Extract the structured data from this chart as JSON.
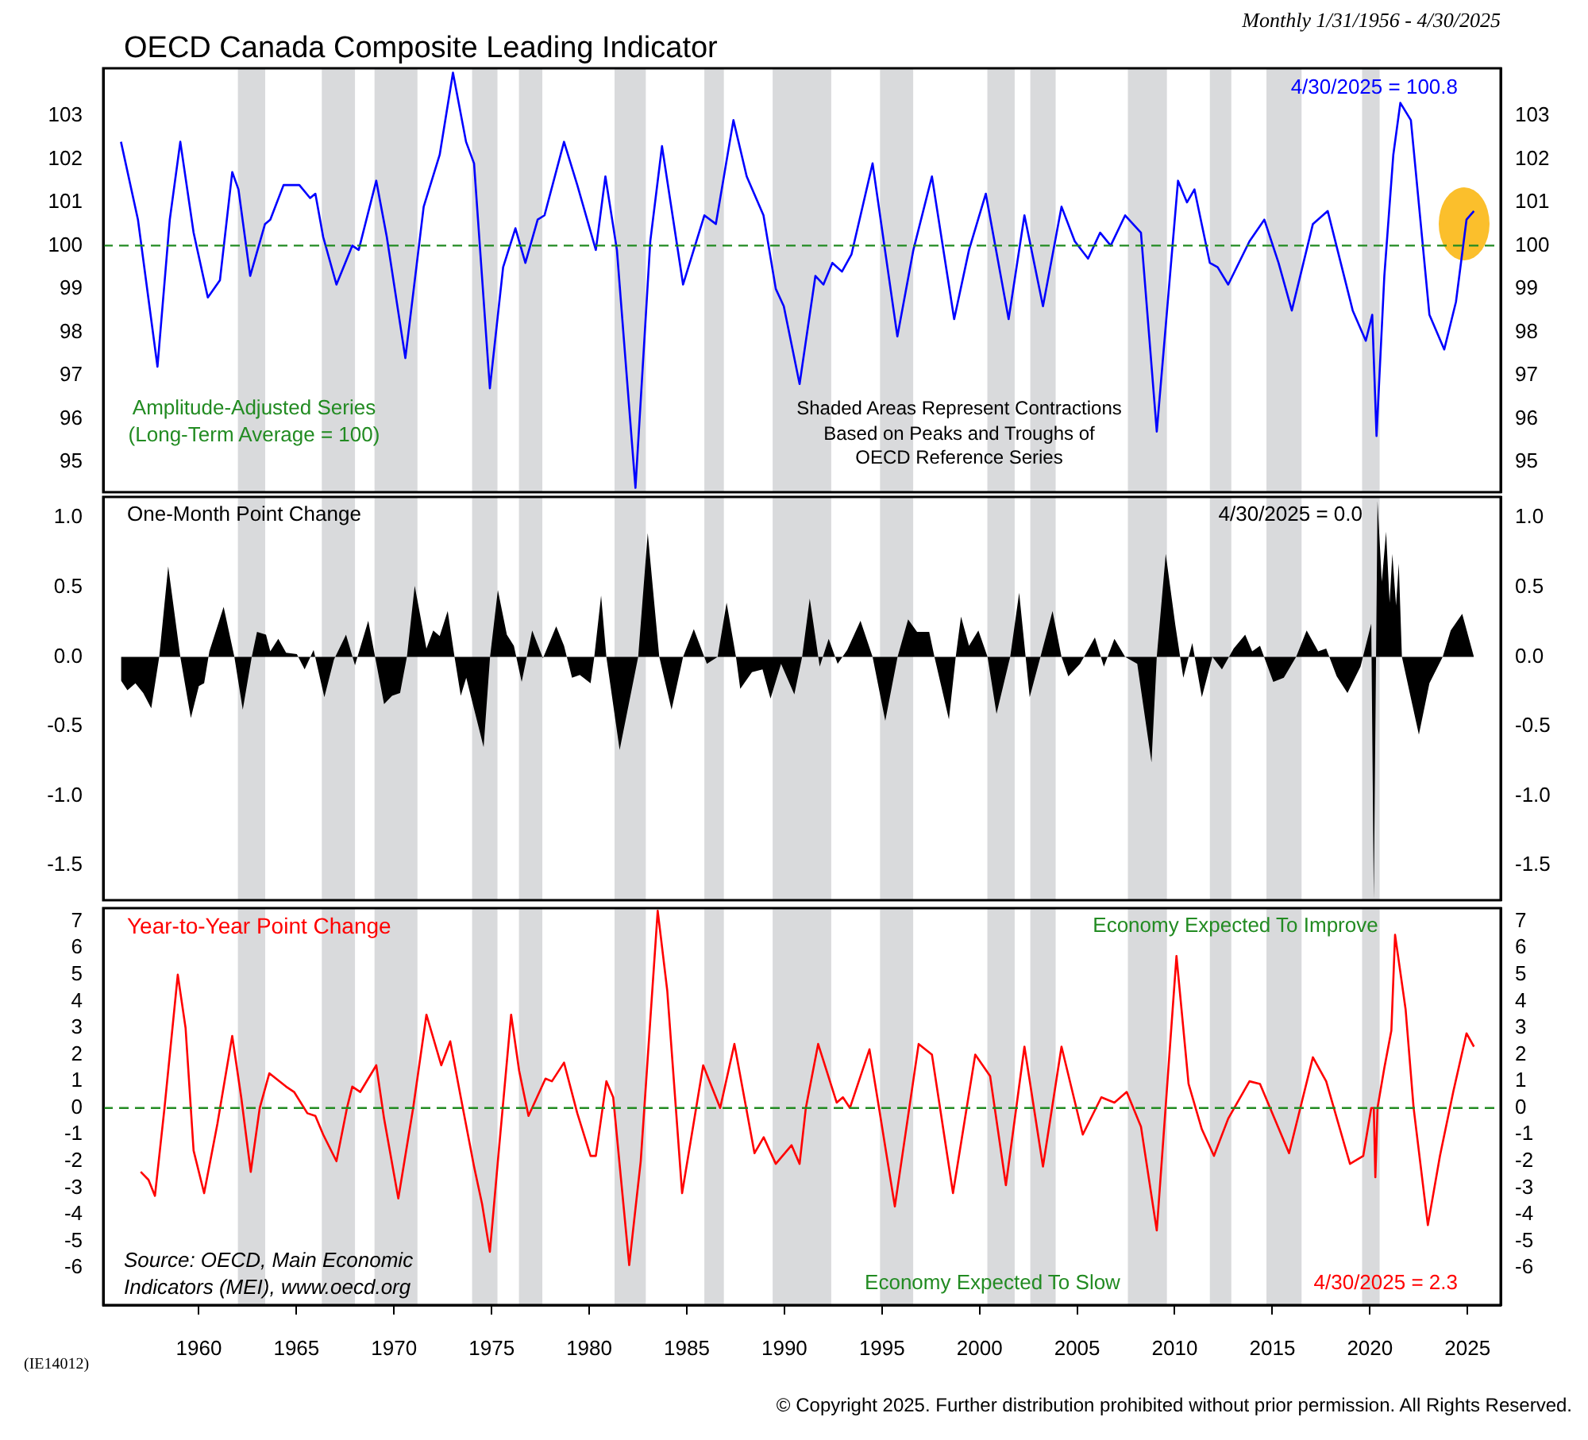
{
  "chart_data": [
    {
      "type": "line",
      "title": "OECD Canada Composite Leading Indicator",
      "subtitle": "Monthly 1/31/1956 - 4/30/2025",
      "color": "#0000ff",
      "tick_labels": "y",
      "x": [
        1956.01,
        1956.88,
        1957.88,
        1958.51,
        1959.05,
        1959.73,
        1960.46,
        1961.08,
        1961.71,
        1962.03,
        1962.63,
        1963.39,
        1963.66,
        1964.34,
        1965.15,
        1965.7,
        1965.97,
        1966.37,
        1967.05,
        1967.86,
        1968.19,
        1969.09,
        1969.63,
        1970.58,
        1971.52,
        1972.34,
        1973.02,
        1973.69,
        1974.1,
        1974.91,
        1975.59,
        1976.22,
        1976.73,
        1977.36,
        1977.71,
        1978.71,
        1979.39,
        1980.34,
        1980.83,
        1981.42,
        1982.37,
        1983.13,
        1983.73,
        1984.81,
        1985.9,
        1986.49,
        1987.39,
        1988.07,
        1988.93,
        1989.56,
        1989.97,
        1990.78,
        1991.59,
        1992.0,
        1992.46,
        1992.95,
        1993.44,
        1994.52,
        1995.79,
        1996.61,
        1997.56,
        1998.7,
        1999.46,
        2000.32,
        2001.49,
        2002.3,
        2003.25,
        2004.2,
        2004.88,
        2005.56,
        2006.18,
        2006.72,
        2007.46,
        2008.27,
        2009.08,
        2010.17,
        2010.63,
        2011.01,
        2011.8,
        2012.2,
        2012.74,
        2013.83,
        2014.59,
        2015.32,
        2016.0,
        2017.08,
        2017.84,
        2019.12,
        2019.79,
        2020.12,
        2020.34,
        2020.74,
        2021.2,
        2021.56,
        2022.1,
        2023.05,
        2023.81,
        2024.41,
        2024.95,
        2025.33
      ],
      "values": [
        102.4,
        100.6,
        97.2,
        100.6,
        102.4,
        100.3,
        98.8,
        99.2,
        101.7,
        101.3,
        99.3,
        100.5,
        100.6,
        101.4,
        101.4,
        101.1,
        101.2,
        100.2,
        99.1,
        100.0,
        99.9,
        101.5,
        100.2,
        97.4,
        100.9,
        102.1,
        104.0,
        102.4,
        101.9,
        96.7,
        99.5,
        100.4,
        99.6,
        100.6,
        100.7,
        102.4,
        101.4,
        99.9,
        101.6,
        99.9,
        94.4,
        100.1,
        102.3,
        99.1,
        100.7,
        100.5,
        102.9,
        101.6,
        100.7,
        99.0,
        98.6,
        96.8,
        99.3,
        99.1,
        99.6,
        99.4,
        99.8,
        101.9,
        97.9,
        99.9,
        101.6,
        98.3,
        99.9,
        101.2,
        98.3,
        100.7,
        98.6,
        100.9,
        100.1,
        99.7,
        100.3,
        100.0,
        100.7,
        100.3,
        95.7,
        101.5,
        101.0,
        101.3,
        99.6,
        99.5,
        99.1,
        100.1,
        100.6,
        99.6,
        98.5,
        100.5,
        100.8,
        98.5,
        97.8,
        98.4,
        95.6,
        99.3,
        102.1,
        103.3,
        102.9,
        98.4,
        97.6,
        98.7,
        100.6,
        100.8
      ],
      "xlim": [
        1955.1,
        2026.7
      ],
      "ylim": [
        94.3,
        104.1
      ],
      "yticks": [
        95,
        96,
        97,
        98,
        99,
        100,
        101,
        102,
        103
      ],
      "y2lim": [
        94.3,
        104.1
      ],
      "y2ticks": [
        95,
        96,
        97,
        98,
        99,
        100,
        101,
        102,
        103
      ],
      "ref_lines": [
        {
          "axis": "y",
          "value": 100,
          "color": "#228b22",
          "line_style": "dashed"
        }
      ],
      "bands": [
        {
          "axis": "x",
          "from": 1962.0,
          "to": 1963.4,
          "color": "#d9dadc"
        },
        {
          "axis": "x",
          "from": 1966.3,
          "to": 1968.0,
          "color": "#d9dadc"
        },
        {
          "axis": "x",
          "from": 1969.0,
          "to": 1971.2,
          "color": "#d9dadc"
        },
        {
          "axis": "x",
          "from": 1974.0,
          "to": 1975.3,
          "color": "#d9dadc"
        },
        {
          "axis": "x",
          "from": 1976.4,
          "to": 1977.6,
          "color": "#d9dadc"
        },
        {
          "axis": "x",
          "from": 1981.3,
          "to": 1982.9,
          "color": "#d9dadc"
        },
        {
          "axis": "x",
          "from": 1985.9,
          "to": 1986.9,
          "color": "#d9dadc"
        },
        {
          "axis": "x",
          "from": 1989.4,
          "to": 1992.4,
          "color": "#d9dadc"
        },
        {
          "axis": "x",
          "from": 1994.9,
          "to": 1996.6,
          "color": "#d9dadc"
        },
        {
          "axis": "x",
          "from": 2000.4,
          "to": 2001.8,
          "color": "#d9dadc"
        },
        {
          "axis": "x",
          "from": 2002.6,
          "to": 2003.9,
          "color": "#d9dadc"
        },
        {
          "axis": "x",
          "from": 2007.6,
          "to": 2009.6,
          "color": "#d9dadc"
        },
        {
          "axis": "x",
          "from": 2011.8,
          "to": 2012.9,
          "color": "#d9dadc"
        },
        {
          "axis": "x",
          "from": 2014.7,
          "to": 2016.5,
          "color": "#d9dadc"
        },
        {
          "axis": "x",
          "from": 2019.6,
          "to": 2020.5,
          "color": "#d9dadc"
        }
      ],
      "annotations": [
        "Amplitude-Adjusted Series\n(Long-Term Average = 100)",
        "Shaded Areas Represent Contractions\nBased on Peaks and Troughs of\nOECD Reference Series",
        "4/30/2025 = 100.8"
      ]
    },
    {
      "type": "area",
      "title": "One-Month Point Change",
      "color": "#000000",
      "tick_labels": "y",
      "x": [
        1956.01,
        1956.34,
        1956.75,
        1957.15,
        1957.56,
        1957.97,
        1958.43,
        1959.05,
        1959.59,
        1960.0,
        1960.27,
        1960.54,
        1961.27,
        1961.82,
        1962.25,
        1962.71,
        1962.98,
        1963.44,
        1963.66,
        1964.07,
        1964.47,
        1965.02,
        1965.42,
        1965.88,
        1966.43,
        1966.92,
        1967.54,
        1968.0,
        1968.68,
        1969.03,
        1969.49,
        1969.9,
        1970.31,
        1970.66,
        1971.06,
        1971.66,
        1972.01,
        1972.34,
        1972.75,
        1973.1,
        1973.42,
        1973.7,
        1974.59,
        1974.92,
        1975.32,
        1975.78,
        1976.14,
        1976.54,
        1977.08,
        1977.63,
        1978.31,
        1978.71,
        1979.12,
        1979.52,
        1980.07,
        1980.26,
        1980.61,
        1980.88,
        1981.56,
        1982.51,
        1983.0,
        1983.59,
        1984.22,
        1984.81,
        1985.36,
        1986.03,
        1986.58,
        1987.04,
        1987.52,
        1987.74,
        1988.34,
        1988.88,
        1989.29,
        1989.83,
        1990.51,
        1990.91,
        1991.3,
        1991.81,
        1992.27,
        1992.73,
        1993.22,
        1993.9,
        1994.52,
        1995.17,
        1995.8,
        1996.34,
        1996.8,
        1997.42,
        1997.69,
        1998.43,
        1998.78,
        1999.05,
        1999.46,
        1999.94,
        2000.41,
        2000.87,
        2001.57,
        2002.03,
        2002.57,
        2003.12,
        2003.74,
        2004.2,
        2004.55,
        2005.15,
        2005.91,
        2006.37,
        2006.91,
        2007.46,
        2008.08,
        2008.81,
        2009.08,
        2009.54,
        2010.03,
        2010.44,
        2010.9,
        2011.39,
        2011.93,
        2012.42,
        2013.02,
        2013.61,
        2013.97,
        2014.37,
        2015.05,
        2015.59,
        2016.22,
        2016.76,
        2017.35,
        2017.76,
        2018.3,
        2018.85,
        2019.52,
        2020.07,
        2020.2,
        2020.39,
        2020.61,
        2020.83,
        2021.01,
        2021.15,
        2021.34,
        2021.48,
        2021.64,
        2022.51,
        2023.05,
        2023.73,
        2024.14,
        2024.73,
        2025.33
      ],
      "values": [
        -0.17,
        -0.24,
        -0.19,
        -0.26,
        -0.37,
        0,
        0.65,
        0,
        -0.44,
        -0.21,
        -0.19,
        0.04,
        0.36,
        0,
        -0.38,
        0,
        0.18,
        0.16,
        0.04,
        0.13,
        0.03,
        0.02,
        -0.09,
        0.05,
        -0.29,
        -0.02,
        0.16,
        -0.06,
        0.26,
        0,
        -0.34,
        -0.28,
        -0.26,
        0,
        0.51,
        0.06,
        0.19,
        0.15,
        0.33,
        0,
        -0.28,
        -0.15,
        -0.65,
        0,
        0.48,
        0.16,
        0.08,
        -0.18,
        0.19,
        -0.01,
        0.22,
        0.08,
        -0.15,
        -0.13,
        -0.19,
        0,
        0.44,
        0,
        -0.67,
        0,
        0.89,
        0,
        -0.38,
        0,
        0.2,
        -0.05,
        0,
        0.39,
        0,
        -0.23,
        -0.11,
        -0.09,
        -0.3,
        -0.05,
        -0.27,
        0,
        0.42,
        -0.07,
        0.13,
        -0.05,
        0.05,
        0.26,
        0,
        -0.46,
        0,
        0.27,
        0.18,
        0.18,
        0,
        -0.45,
        0,
        0.29,
        0.08,
        0.19,
        0,
        -0.41,
        0,
        0.46,
        -0.29,
        0,
        0.33,
        0,
        -0.14,
        -0.05,
        0.14,
        -0.07,
        0.13,
        0,
        -0.05,
        -0.76,
        0,
        0.74,
        0.23,
        -0.15,
        0.1,
        -0.29,
        0,
        -0.09,
        0.06,
        0.16,
        0.04,
        0.08,
        -0.18,
        -0.15,
        0,
        0.19,
        0.04,
        0.06,
        -0.14,
        -0.26,
        -0.07,
        0.24,
        -1.74,
        1.12,
        0.54,
        0.9,
        0.39,
        0.74,
        0.37,
        0.67,
        0,
        -0.56,
        -0.19,
        0,
        0.19,
        0.31,
        0.0
      ],
      "xlim": [
        1955.1,
        2026.7
      ],
      "ylim": [
        -1.75,
        1.15
      ],
      "yticks": [
        {
          "value": 1,
          "label": "1.0"
        },
        0.5,
        {
          "value": 0,
          "label": "0.0"
        },
        -0.5,
        {
          "value": -1,
          "label": "-1.0"
        },
        -1.5
      ],
      "y2lim": [
        -1.75,
        1.15
      ],
      "y2ticks": [
        {
          "value": 1,
          "label": "1.0"
        },
        0.5,
        {
          "value": 0,
          "label": "0.0"
        },
        -0.5,
        {
          "value": -1,
          "label": "-1.0"
        },
        -1.5
      ],
      "bands": [
        {
          "axis": "x",
          "from": 1962.0,
          "to": 1963.4,
          "color": "#d9dadc"
        },
        {
          "axis": "x",
          "from": 1966.3,
          "to": 1968.0,
          "color": "#d9dadc"
        },
        {
          "axis": "x",
          "from": 1969.0,
          "to": 1971.2,
          "color": "#d9dadc"
        },
        {
          "axis": "x",
          "from": 1974.0,
          "to": 1975.3,
          "color": "#d9dadc"
        },
        {
          "axis": "x",
          "from": 1976.4,
          "to": 1977.6,
          "color": "#d9dadc"
        },
        {
          "axis": "x",
          "from": 1981.3,
          "to": 1982.9,
          "color": "#d9dadc"
        },
        {
          "axis": "x",
          "from": 1985.9,
          "to": 1986.9,
          "color": "#d9dadc"
        },
        {
          "axis": "x",
          "from": 1989.4,
          "to": 1992.4,
          "color": "#d9dadc"
        },
        {
          "axis": "x",
          "from": 1994.9,
          "to": 1996.6,
          "color": "#d9dadc"
        },
        {
          "axis": "x",
          "from": 2000.4,
          "to": 2001.8,
          "color": "#d9dadc"
        },
        {
          "axis": "x",
          "from": 2002.6,
          "to": 2003.9,
          "color": "#d9dadc"
        },
        {
          "axis": "x",
          "from": 2007.6,
          "to": 2009.6,
          "color": "#d9dadc"
        },
        {
          "axis": "x",
          "from": 2011.8,
          "to": 2012.9,
          "color": "#d9dadc"
        },
        {
          "axis": "x",
          "from": 2014.7,
          "to": 2016.5,
          "color": "#d9dadc"
        },
        {
          "axis": "x",
          "from": 2019.6,
          "to": 2020.5,
          "color": "#d9dadc"
        }
      ],
      "annotations": [
        "4/30/2025 = 0.0"
      ]
    },
    {
      "type": "line",
      "title": "Year-to-Year Point Change",
      "color": "#ff0000",
      "x": [
        1957.02,
        1957.42,
        1957.75,
        1958.24,
        1958.92,
        1959.32,
        1959.73,
        1960.27,
        1960.95,
        1961.71,
        1962.17,
        1962.66,
        1963.12,
        1963.61,
        1964.47,
        1964.88,
        1965.56,
        1965.97,
        1966.37,
        1967.05,
        1967.59,
        1967.86,
        1968.27,
        1969.09,
        1969.49,
        1970.22,
        1970.98,
        1971.66,
        1972.42,
        1972.88,
        1973.42,
        1974.1,
        1974.51,
        1974.91,
        1975.32,
        1976.0,
        1976.41,
        1976.89,
        1977.76,
        1978.09,
        1978.71,
        1979.39,
        1980.07,
        1980.34,
        1980.88,
        1981.23,
        1982.05,
        1982.64,
        1983.51,
        1984.0,
        1984.76,
        1985.84,
        1986.71,
        1987.44,
        1988.47,
        1988.94,
        1989.56,
        1990.37,
        1990.78,
        1991.1,
        1991.73,
        1992.68,
        1993.0,
        1993.36,
        1994.36,
        1994.85,
        1995.66,
        1996.88,
        1997.56,
        1998.64,
        1999.78,
        2000.54,
        2001.35,
        2002.3,
        2003.25,
        2004.2,
        2005.29,
        2006.24,
        2006.91,
        2007.54,
        2008.27,
        2009.08,
        2010.09,
        2010.71,
        2011.39,
        2012.01,
        2012.74,
        2013.83,
        2014.37,
        2015.86,
        2017.08,
        2017.76,
        2018.98,
        2019.66,
        2020.07,
        2020.2,
        2020.28,
        2020.39,
        2020.74,
        2021.1,
        2021.29,
        2021.83,
        2022.24,
        2022.97,
        2023.59,
        2024.27,
        2024.95,
        2025.33
      ],
      "values": [
        -2.4,
        -2.7,
        -3.3,
        0,
        5.0,
        3.0,
        -1.6,
        -3.2,
        -0.6,
        2.7,
        0.4,
        -2.4,
        0,
        1.3,
        0.8,
        0.6,
        -0.2,
        -0.3,
        -1.0,
        -2.0,
        0,
        0.8,
        0.6,
        1.6,
        -0.4,
        -3.4,
        0,
        3.5,
        1.6,
        2.5,
        0.4,
        -2.2,
        -3.6,
        -5.4,
        -2.0,
        3.5,
        1.4,
        -0.3,
        1.1,
        1.0,
        1.7,
        -0.2,
        -1.8,
        -1.8,
        1.0,
        0.4,
        -5.9,
        -2.0,
        7.4,
        4.4,
        -3.2,
        1.6,
        0,
        2.4,
        -1.7,
        -1.1,
        -2.1,
        -1.4,
        -2.1,
        0,
        2.4,
        0.2,
        0.4,
        0,
        2.2,
        0,
        -3.7,
        2.4,
        2.0,
        -3.2,
        2.0,
        1.2,
        -2.9,
        2.3,
        -2.2,
        2.3,
        -1.0,
        0.4,
        0.2,
        0.6,
        -0.7,
        -4.6,
        5.7,
        0.9,
        -0.8,
        -1.8,
        -0.4,
        1.0,
        0.9,
        -1.7,
        1.9,
        1.0,
        -2.1,
        -1.8,
        0,
        0,
        -2.6,
        0,
        1.5,
        2.9,
        6.5,
        3.7,
        0,
        -4.4,
        -1.8,
        0.6,
        2.8,
        2.3
      ],
      "xlim": [
        1955.1,
        2026.7
      ],
      "xticks": [
        1960,
        1965,
        1970,
        1975,
        1980,
        1985,
        1990,
        1995,
        2000,
        2005,
        2010,
        2015,
        2020,
        2025
      ],
      "ylim": [
        -7.4,
        7.5
      ],
      "yticks": [
        -6,
        -5,
        -4,
        -3,
        -2,
        -1,
        0,
        1,
        2,
        3,
        4,
        5,
        6,
        7
      ],
      "y2lim": [
        -7.4,
        7.5
      ],
      "y2ticks": [
        -6,
        -5,
        -4,
        -3,
        -2,
        -1,
        0,
        1,
        2,
        3,
        4,
        5,
        6,
        7
      ],
      "ref_lines": [
        {
          "axis": "y",
          "value": 0,
          "color": "#228b22",
          "line_style": "dashed"
        }
      ],
      "bands": [
        {
          "axis": "x",
          "from": 1962.0,
          "to": 1963.4,
          "color": "#d9dadc"
        },
        {
          "axis": "x",
          "from": 1966.3,
          "to": 1968.0,
          "color": "#d9dadc"
        },
        {
          "axis": "x",
          "from": 1969.0,
          "to": 1971.2,
          "color": "#d9dadc"
        },
        {
          "axis": "x",
          "from": 1974.0,
          "to": 1975.3,
          "color": "#d9dadc"
        },
        {
          "axis": "x",
          "from": 1976.4,
          "to": 1977.6,
          "color": "#d9dadc"
        },
        {
          "axis": "x",
          "from": 1981.3,
          "to": 1982.9,
          "color": "#d9dadc"
        },
        {
          "axis": "x",
          "from": 1985.9,
          "to": 1986.9,
          "color": "#d9dadc"
        },
        {
          "axis": "x",
          "from": 1989.4,
          "to": 1992.4,
          "color": "#d9dadc"
        },
        {
          "axis": "x",
          "from": 1994.9,
          "to": 1996.6,
          "color": "#d9dadc"
        },
        {
          "axis": "x",
          "from": 2000.4,
          "to": 2001.8,
          "color": "#d9dadc"
        },
        {
          "axis": "x",
          "from": 2002.6,
          "to": 2003.9,
          "color": "#d9dadc"
        },
        {
          "axis": "x",
          "from": 2007.6,
          "to": 2009.6,
          "color": "#d9dadc"
        },
        {
          "axis": "x",
          "from": 2011.8,
          "to": 2012.9,
          "color": "#d9dadc"
        },
        {
          "axis": "x",
          "from": 2014.7,
          "to": 2016.5,
          "color": "#d9dadc"
        },
        {
          "axis": "x",
          "from": 2019.6,
          "to": 2020.5,
          "color": "#d9dadc"
        }
      ],
      "annotations": [
        "Economy Expected To Improve",
        "Economy Expected To Slow",
        "4/30/2025 = 2.3",
        "Source: OECD, Main Economic\nIndicators (MEI), www.oecd.org",
        "(IE14012)",
        "© Copyright 2025. Further distribution prohibited without prior permission. All Rights Reserved."
      ]
    }
  ]
}
